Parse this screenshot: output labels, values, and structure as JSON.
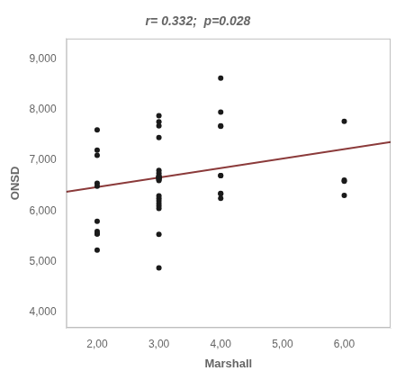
{
  "chart_data": {
    "type": "scatter",
    "title": "r= 0.332;  p=0.028",
    "xlabel": "Marshall",
    "ylabel": "ONSD",
    "xlim": [
      1.5,
      6.75
    ],
    "ylim": [
      3700,
      9400
    ],
    "xticks": [
      {
        "value": 2.0,
        "label": "2,00"
      },
      {
        "value": 3.0,
        "label": "3,00"
      },
      {
        "value": 4.0,
        "label": "4,00"
      },
      {
        "value": 5.0,
        "label": "5,00"
      },
      {
        "value": 6.0,
        "label": "6,00"
      }
    ],
    "yticks": [
      {
        "value": 4000,
        "label": "4,000"
      },
      {
        "value": 5000,
        "label": "5,000"
      },
      {
        "value": 6000,
        "label": "6,000"
      },
      {
        "value": 7000,
        "label": "7,000"
      },
      {
        "value": 8000,
        "label": "8,000"
      },
      {
        "value": 9000,
        "label": "9,000"
      }
    ],
    "grid": false,
    "series": [
      {
        "type": "scatter",
        "marker": "circle",
        "color": "#1a1a1a",
        "x": [
          2,
          2,
          2,
          2,
          2,
          2,
          2,
          2,
          2,
          2,
          3,
          3,
          3,
          3,
          3,
          3,
          3,
          3,
          3,
          3,
          3,
          3,
          3,
          3,
          3,
          3,
          3,
          3,
          3,
          3,
          3,
          3,
          3,
          4,
          4,
          4,
          4,
          4,
          4,
          4,
          4,
          4,
          6,
          6,
          6,
          6
        ],
        "values": [
          7600,
          7200,
          7100,
          6550,
          6490,
          5800,
          5600,
          5550,
          5550,
          5230,
          7880,
          7760,
          7450,
          6800,
          6750,
          6700,
          6680,
          6670,
          6650,
          6640,
          6620,
          6600,
          6300,
          6250,
          6200,
          6150,
          6100,
          6050,
          5540,
          4880,
          6650,
          6670,
          7680,
          8620,
          7950,
          7680,
          7670,
          6700,
          6700,
          6350,
          6340,
          6250,
          7770,
          6610,
          6590,
          6310
        ]
      },
      {
        "type": "line",
        "line_style": "solid",
        "color": "#8B3A3A",
        "x": [
          1.5,
          6.75
        ],
        "values": [
          6380,
          7360
        ]
      }
    ]
  }
}
